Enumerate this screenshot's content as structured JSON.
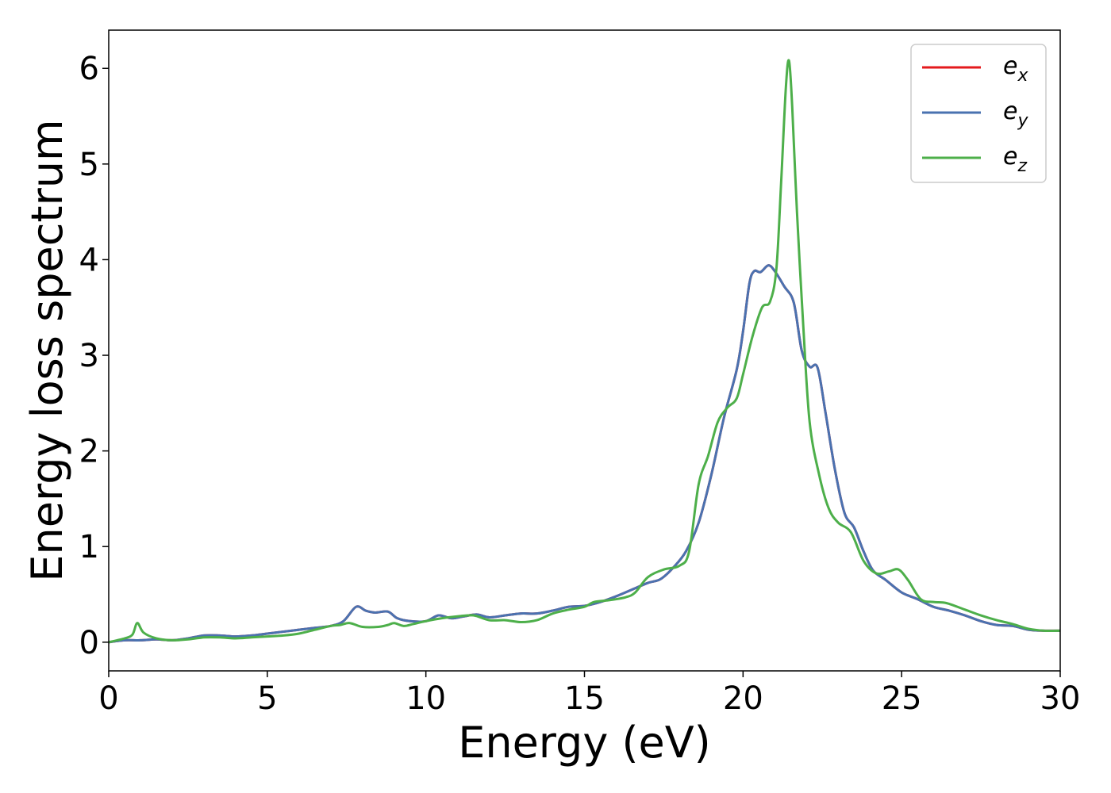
{
  "chart_data": {
    "type": "line",
    "title": "",
    "xlabel": "Energy (eV)",
    "ylabel": "Energy loss spectrum",
    "xlim": [
      0,
      30
    ],
    "ylim": [
      -0.3,
      6.4
    ],
    "xticks": [
      0,
      5,
      10,
      15,
      20,
      25,
      30
    ],
    "yticks": [
      0,
      1,
      2,
      3,
      4,
      5,
      6
    ],
    "grid": false,
    "legend_position": "top-right",
    "series": [
      {
        "name": "e_x",
        "legend": {
          "base": "e",
          "sub": "x"
        },
        "color": "#e41a1c",
        "points": [
          [
            0,
            0.0
          ],
          [
            0.5,
            0.02
          ],
          [
            1.0,
            0.02
          ],
          [
            1.5,
            0.03
          ],
          [
            2.0,
            0.02
          ],
          [
            2.5,
            0.04
          ],
          [
            3.0,
            0.07
          ],
          [
            3.5,
            0.07
          ],
          [
            4.0,
            0.06
          ],
          [
            4.5,
            0.07
          ],
          [
            5.0,
            0.09
          ],
          [
            5.5,
            0.11
          ],
          [
            6.0,
            0.13
          ],
          [
            6.5,
            0.15
          ],
          [
            7.0,
            0.17
          ],
          [
            7.4,
            0.22
          ],
          [
            7.8,
            0.37
          ],
          [
            8.1,
            0.33
          ],
          [
            8.4,
            0.31
          ],
          [
            8.8,
            0.32
          ],
          [
            9.1,
            0.25
          ],
          [
            9.5,
            0.22
          ],
          [
            10.0,
            0.22
          ],
          [
            10.4,
            0.28
          ],
          [
            10.8,
            0.25
          ],
          [
            11.2,
            0.27
          ],
          [
            11.6,
            0.29
          ],
          [
            12.0,
            0.26
          ],
          [
            12.5,
            0.28
          ],
          [
            13.0,
            0.3
          ],
          [
            13.5,
            0.3
          ],
          [
            14.0,
            0.33
          ],
          [
            14.5,
            0.37
          ],
          [
            15.0,
            0.38
          ],
          [
            15.5,
            0.42
          ],
          [
            16.0,
            0.48
          ],
          [
            16.5,
            0.55
          ],
          [
            17.0,
            0.62
          ],
          [
            17.4,
            0.66
          ],
          [
            17.8,
            0.78
          ],
          [
            18.2,
            0.95
          ],
          [
            18.6,
            1.25
          ],
          [
            19.0,
            1.75
          ],
          [
            19.4,
            2.35
          ],
          [
            19.8,
            2.85
          ],
          [
            20.0,
            3.25
          ],
          [
            20.2,
            3.75
          ],
          [
            20.35,
            3.88
          ],
          [
            20.55,
            3.87
          ],
          [
            20.8,
            3.94
          ],
          [
            21.0,
            3.88
          ],
          [
            21.3,
            3.72
          ],
          [
            21.6,
            3.55
          ],
          [
            21.85,
            3.05
          ],
          [
            22.1,
            2.88
          ],
          [
            22.35,
            2.87
          ],
          [
            22.6,
            2.4
          ],
          [
            22.9,
            1.8
          ],
          [
            23.2,
            1.35
          ],
          [
            23.5,
            1.2
          ],
          [
            23.8,
            0.95
          ],
          [
            24.1,
            0.75
          ],
          [
            24.5,
            0.65
          ],
          [
            25.0,
            0.52
          ],
          [
            25.5,
            0.45
          ],
          [
            26.0,
            0.37
          ],
          [
            26.5,
            0.33
          ],
          [
            27.0,
            0.28
          ],
          [
            27.5,
            0.22
          ],
          [
            28.0,
            0.18
          ],
          [
            28.5,
            0.17
          ],
          [
            29.0,
            0.13
          ],
          [
            29.5,
            0.12
          ],
          [
            30.0,
            0.12
          ]
        ]
      },
      {
        "name": "e_y",
        "legend": {
          "base": "e",
          "sub": "y"
        },
        "color": "#4a72b0",
        "points": [
          [
            0,
            0.0
          ],
          [
            0.5,
            0.02
          ],
          [
            1.0,
            0.02
          ],
          [
            1.5,
            0.03
          ],
          [
            2.0,
            0.02
          ],
          [
            2.5,
            0.04
          ],
          [
            3.0,
            0.07
          ],
          [
            3.5,
            0.07
          ],
          [
            4.0,
            0.06
          ],
          [
            4.5,
            0.07
          ],
          [
            5.0,
            0.09
          ],
          [
            5.5,
            0.11
          ],
          [
            6.0,
            0.13
          ],
          [
            6.5,
            0.15
          ],
          [
            7.0,
            0.17
          ],
          [
            7.4,
            0.22
          ],
          [
            7.8,
            0.37
          ],
          [
            8.1,
            0.33
          ],
          [
            8.4,
            0.31
          ],
          [
            8.8,
            0.32
          ],
          [
            9.1,
            0.25
          ],
          [
            9.5,
            0.22
          ],
          [
            10.0,
            0.22
          ],
          [
            10.4,
            0.28
          ],
          [
            10.8,
            0.25
          ],
          [
            11.2,
            0.27
          ],
          [
            11.6,
            0.29
          ],
          [
            12.0,
            0.26
          ],
          [
            12.5,
            0.28
          ],
          [
            13.0,
            0.3
          ],
          [
            13.5,
            0.3
          ],
          [
            14.0,
            0.33
          ],
          [
            14.5,
            0.37
          ],
          [
            15.0,
            0.38
          ],
          [
            15.5,
            0.42
          ],
          [
            16.0,
            0.48
          ],
          [
            16.5,
            0.55
          ],
          [
            17.0,
            0.62
          ],
          [
            17.4,
            0.66
          ],
          [
            17.8,
            0.78
          ],
          [
            18.2,
            0.95
          ],
          [
            18.6,
            1.25
          ],
          [
            19.0,
            1.75
          ],
          [
            19.4,
            2.35
          ],
          [
            19.8,
            2.85
          ],
          [
            20.0,
            3.25
          ],
          [
            20.2,
            3.75
          ],
          [
            20.35,
            3.88
          ],
          [
            20.55,
            3.87
          ],
          [
            20.8,
            3.94
          ],
          [
            21.0,
            3.88
          ],
          [
            21.3,
            3.72
          ],
          [
            21.6,
            3.55
          ],
          [
            21.85,
            3.05
          ],
          [
            22.1,
            2.88
          ],
          [
            22.35,
            2.87
          ],
          [
            22.6,
            2.4
          ],
          [
            22.9,
            1.8
          ],
          [
            23.2,
            1.35
          ],
          [
            23.5,
            1.2
          ],
          [
            23.8,
            0.95
          ],
          [
            24.1,
            0.75
          ],
          [
            24.5,
            0.65
          ],
          [
            25.0,
            0.52
          ],
          [
            25.5,
            0.45
          ],
          [
            26.0,
            0.37
          ],
          [
            26.5,
            0.33
          ],
          [
            27.0,
            0.28
          ],
          [
            27.5,
            0.22
          ],
          [
            28.0,
            0.18
          ],
          [
            28.5,
            0.17
          ],
          [
            29.0,
            0.13
          ],
          [
            29.5,
            0.12
          ],
          [
            30.0,
            0.12
          ]
        ]
      },
      {
        "name": "e_z",
        "legend": {
          "base": "e",
          "sub": "z"
        },
        "color": "#4daf4a",
        "points": [
          [
            0,
            0.0
          ],
          [
            0.5,
            0.04
          ],
          [
            0.75,
            0.08
          ],
          [
            0.9,
            0.2
          ],
          [
            1.1,
            0.1
          ],
          [
            1.5,
            0.04
          ],
          [
            2.0,
            0.02
          ],
          [
            2.5,
            0.03
          ],
          [
            3.0,
            0.05
          ],
          [
            3.5,
            0.05
          ],
          [
            4.0,
            0.04
          ],
          [
            4.5,
            0.05
          ],
          [
            5.0,
            0.06
          ],
          [
            5.5,
            0.07
          ],
          [
            6.0,
            0.09
          ],
          [
            6.5,
            0.13
          ],
          [
            7.0,
            0.17
          ],
          [
            7.3,
            0.18
          ],
          [
            7.6,
            0.2
          ],
          [
            8.0,
            0.16
          ],
          [
            8.5,
            0.16
          ],
          [
            8.8,
            0.18
          ],
          [
            9.0,
            0.2
          ],
          [
            9.3,
            0.17
          ],
          [
            9.6,
            0.19
          ],
          [
            10.0,
            0.22
          ],
          [
            10.5,
            0.25
          ],
          [
            11.0,
            0.27
          ],
          [
            11.5,
            0.28
          ],
          [
            12.0,
            0.23
          ],
          [
            12.5,
            0.23
          ],
          [
            13.0,
            0.21
          ],
          [
            13.5,
            0.23
          ],
          [
            14.0,
            0.3
          ],
          [
            14.5,
            0.34
          ],
          [
            15.0,
            0.37
          ],
          [
            15.3,
            0.42
          ],
          [
            15.8,
            0.44
          ],
          [
            16.3,
            0.47
          ],
          [
            16.6,
            0.52
          ],
          [
            17.0,
            0.68
          ],
          [
            17.5,
            0.76
          ],
          [
            18.0,
            0.8
          ],
          [
            18.3,
            0.95
          ],
          [
            18.6,
            1.65
          ],
          [
            18.9,
            1.95
          ],
          [
            19.2,
            2.3
          ],
          [
            19.5,
            2.45
          ],
          [
            19.8,
            2.55
          ],
          [
            20.0,
            2.8
          ],
          [
            20.3,
            3.2
          ],
          [
            20.6,
            3.5
          ],
          [
            20.85,
            3.56
          ],
          [
            21.05,
            3.9
          ],
          [
            21.2,
            4.8
          ],
          [
            21.35,
            5.8
          ],
          [
            21.45,
            6.08
          ],
          [
            21.55,
            5.6
          ],
          [
            21.7,
            4.5
          ],
          [
            21.9,
            3.3
          ],
          [
            22.1,
            2.3
          ],
          [
            22.4,
            1.75
          ],
          [
            22.7,
            1.4
          ],
          [
            23.0,
            1.25
          ],
          [
            23.4,
            1.15
          ],
          [
            23.8,
            0.85
          ],
          [
            24.2,
            0.72
          ],
          [
            24.6,
            0.74
          ],
          [
            24.9,
            0.76
          ],
          [
            25.2,
            0.65
          ],
          [
            25.6,
            0.45
          ],
          [
            26.0,
            0.42
          ],
          [
            26.4,
            0.41
          ],
          [
            27.0,
            0.34
          ],
          [
            27.5,
            0.28
          ],
          [
            28.0,
            0.23
          ],
          [
            28.5,
            0.19
          ],
          [
            29.0,
            0.14
          ],
          [
            29.5,
            0.12
          ],
          [
            30.0,
            0.12
          ]
        ]
      }
    ]
  }
}
